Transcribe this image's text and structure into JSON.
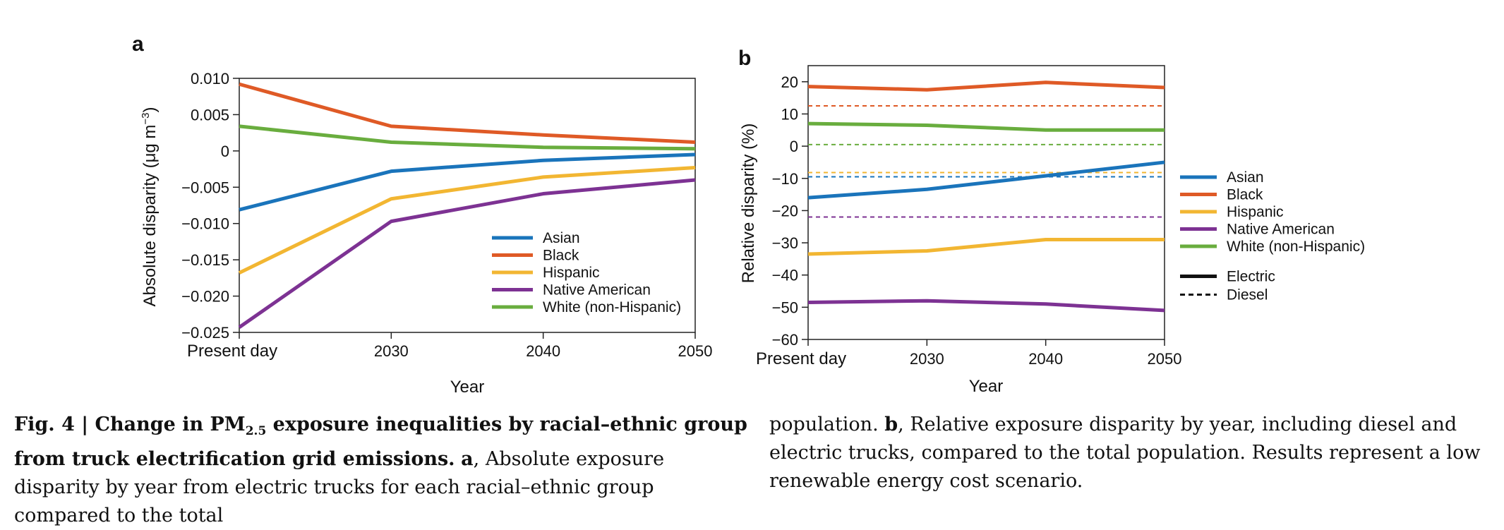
{
  "colors": {
    "Asian": "#1a74bb",
    "Black": "#df5a26",
    "Hispanic": "#f2b632",
    "Native American": "#7d3293",
    "White (non-Hispanic)": "#69ad3e"
  },
  "chart_data": [
    {
      "panel_label": "a",
      "type": "line",
      "categories": [
        "Present day",
        "2030",
        "2040",
        "2050"
      ],
      "xlabel": "Year",
      "ylabel": "Absolute disparity (μg m",
      "ylabel_sup": "−3",
      "ylabel_end": ")",
      "ylim": [
        -0.025,
        0.01
      ],
      "yticks": [
        {
          "value": 0.01,
          "label": "0.010"
        },
        {
          "value": 0.005,
          "label": "0.005"
        },
        {
          "value": 0,
          "label": "0"
        },
        {
          "value": -0.005,
          "label": "−0.005"
        },
        {
          "value": -0.01,
          "label": "−0.010"
        },
        {
          "value": -0.015,
          "label": "−0.015"
        },
        {
          "value": -0.02,
          "label": "−0.020"
        },
        {
          "value": -0.025,
          "label": "−0.025"
        }
      ],
      "grid": false,
      "legend_position": "bottom-right",
      "series": [
        {
          "name": "Asian",
          "values": [
            -0.0081,
            -0.0028,
            -0.0013,
            -0.0005
          ]
        },
        {
          "name": "Black",
          "values": [
            0.0092,
            0.0034,
            0.0022,
            0.0012
          ]
        },
        {
          "name": "Hispanic",
          "values": [
            -0.0168,
            -0.0066,
            -0.0036,
            -0.0023
          ]
        },
        {
          "name": "Native American",
          "values": [
            -0.0243,
            -0.0097,
            -0.0059,
            -0.004
          ]
        },
        {
          "name": "White (non-Hispanic)",
          "values": [
            0.0034,
            0.0012,
            0.0005,
            0.0003
          ]
        }
      ]
    },
    {
      "panel_label": "b",
      "type": "line",
      "categories": [
        "Present day",
        "2030",
        "2040",
        "2050"
      ],
      "xlabel": "Year",
      "ylabel": "Relative disparity (%)",
      "ylim": [
        -60,
        25
      ],
      "yticks": [
        {
          "value": 20,
          "label": "20"
        },
        {
          "value": 10,
          "label": "10"
        },
        {
          "value": 0,
          "label": "0"
        },
        {
          "value": -10,
          "label": "−10"
        },
        {
          "value": -20,
          "label": "−20"
        },
        {
          "value": -30,
          "label": "−30"
        },
        {
          "value": -40,
          "label": "−40"
        },
        {
          "value": -50,
          "label": "−50"
        },
        {
          "value": -60,
          "label": "−60"
        }
      ],
      "grid": false,
      "legend_position": "right",
      "series": [
        {
          "name": "Asian",
          "values": [
            -16,
            -13.4,
            -9.2,
            -5
          ]
        },
        {
          "name": "Black",
          "values": [
            18.5,
            17.5,
            19.8,
            18.2
          ]
        },
        {
          "name": "Hispanic",
          "values": [
            -33.5,
            -32.5,
            -29,
            -29
          ]
        },
        {
          "name": "Native American",
          "values": [
            -48.5,
            -48,
            -49,
            -51
          ]
        },
        {
          "name": "White (non-Hispanic)",
          "values": [
            7,
            6.5,
            5,
            5
          ]
        }
      ],
      "diesel_reference": [
        {
          "name": "Asian",
          "value": -9.5
        },
        {
          "name": "Black",
          "value": 12.5
        },
        {
          "name": "Hispanic",
          "value": -8.2
        },
        {
          "name": "Native American",
          "value": -22
        },
        {
          "name": "White (non-Hispanic)",
          "value": 0.5
        }
      ],
      "style_legend": [
        "Electric",
        "Diesel"
      ]
    }
  ],
  "caption": {
    "fig_label": "Fig. 4 | Change in PM",
    "fig_sub": "2.5",
    "fig_title_rest": " exposure inequalities by racial–ethnic group from truck electrification grid emissions.",
    "panel_a_label": "a",
    "panel_a_text": ", Absolute exposure disparity by year from electric trucks for each racial–ethnic group compared to the total",
    "right_start": "population.",
    "panel_b_label": "b",
    "panel_b_text": ", Relative exposure disparity by year, including diesel and electric trucks, compared to the total population. Results represent a low renewable energy cost scenario."
  }
}
